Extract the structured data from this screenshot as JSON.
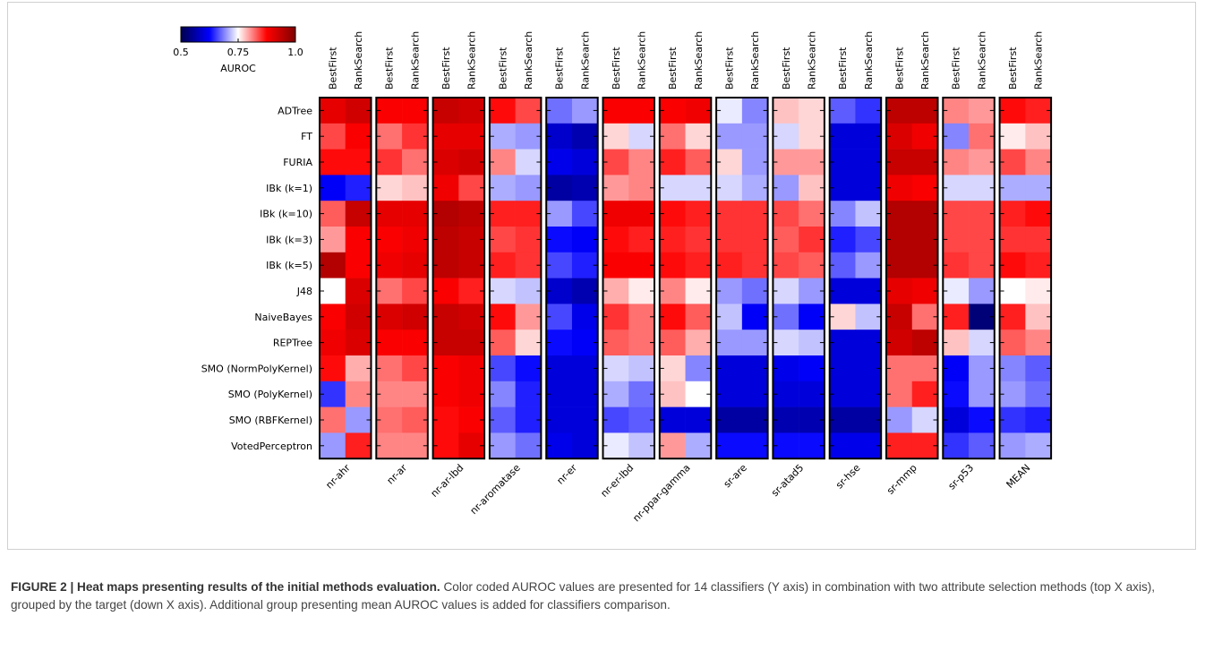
{
  "chart_data": {
    "type": "heatmap",
    "colorbar_label": "AUROC",
    "clim": [
      0.5,
      1
    ],
    "cticks": [
      0.5,
      0.75,
      {
        "value": 1,
        "label": "1.0"
      }
    ],
    "colormap": [
      "#00004c",
      "#0000ff",
      "#ffffff",
      "#ff0000",
      "#800000"
    ],
    "methods": [
      "BestFirst",
      "RankSearch"
    ],
    "rows": [
      "ADTree",
      "FT",
      "FURIA",
      "IBk (k=1)",
      "IBk (k=10)",
      "IBk (k=3)",
      "IBk (k=5)",
      "J48",
      "NaiveBayes",
      "REPTree",
      "SMO (NormPolyKernel)",
      "SMO (PolyKernel)",
      "SMO (RBFKernel)",
      "VotedPerceptron"
    ],
    "groups": [
      {
        "name": "nr-ahr",
        "values": [
          [
            0.9,
            0.92
          ],
          [
            0.84,
            0.88
          ],
          [
            0.87,
            0.87
          ],
          [
            0.62,
            0.64
          ],
          [
            0.83,
            0.93
          ],
          [
            0.8,
            0.88
          ],
          [
            0.95,
            0.88
          ],
          [
            0.75,
            0.91
          ],
          [
            0.88,
            0.92
          ],
          [
            0.89,
            0.91
          ],
          [
            0.87,
            0.79
          ],
          [
            0.65,
            0.81
          ],
          [
            0.82,
            0.7
          ],
          [
            0.7,
            0.86
          ]
        ]
      },
      {
        "name": "nr-ar",
        "values": [
          [
            0.88,
            0.88
          ],
          [
            0.82,
            0.85
          ],
          [
            0.85,
            0.82
          ],
          [
            0.77,
            0.78
          ],
          [
            0.9,
            0.9
          ],
          [
            0.88,
            0.89
          ],
          [
            0.89,
            0.9
          ],
          [
            0.82,
            0.84
          ],
          [
            0.91,
            0.92
          ],
          [
            0.88,
            0.88
          ],
          [
            0.82,
            0.84
          ],
          [
            0.81,
            0.81
          ],
          [
            0.82,
            0.83
          ],
          [
            0.81,
            0.81
          ]
        ]
      },
      {
        "name": "nr-ar-lbd",
        "values": [
          [
            0.93,
            0.92
          ],
          [
            0.9,
            0.9
          ],
          [
            0.91,
            0.92
          ],
          [
            0.89,
            0.84
          ],
          [
            0.95,
            0.94
          ],
          [
            0.94,
            0.93
          ],
          [
            0.94,
            0.93
          ],
          [
            0.88,
            0.86
          ],
          [
            0.93,
            0.92
          ],
          [
            0.93,
            0.93
          ],
          [
            0.88,
            0.89
          ],
          [
            0.88,
            0.89
          ],
          [
            0.87,
            0.88
          ],
          [
            0.87,
            0.9
          ]
        ]
      },
      {
        "name": "nr-aromatase",
        "values": [
          [
            0.87,
            0.84
          ],
          [
            0.71,
            0.7
          ],
          [
            0.81,
            0.73
          ],
          [
            0.71,
            0.7
          ],
          [
            0.86,
            0.86
          ],
          [
            0.84,
            0.85
          ],
          [
            0.86,
            0.85
          ],
          [
            0.73,
            0.72
          ],
          [
            0.87,
            0.8
          ],
          [
            0.83,
            0.77
          ],
          [
            0.66,
            0.63
          ],
          [
            0.69,
            0.64
          ],
          [
            0.67,
            0.64
          ],
          [
            0.7,
            0.68
          ]
        ]
      },
      {
        "name": "nr-er",
        "values": [
          [
            0.68,
            0.7
          ],
          [
            0.59,
            0.57
          ],
          [
            0.61,
            0.6
          ],
          [
            0.56,
            0.57
          ],
          [
            0.7,
            0.66
          ],
          [
            0.63,
            0.62
          ],
          [
            0.66,
            0.64
          ],
          [
            0.59,
            0.57
          ],
          [
            0.66,
            0.61
          ],
          [
            0.63,
            0.62
          ],
          [
            0.6,
            0.6
          ],
          [
            0.6,
            0.6
          ],
          [
            0.6,
            0.6
          ],
          [
            0.61,
            0.6
          ]
        ]
      },
      {
        "name": "nr-er-lbd",
        "values": [
          [
            0.88,
            0.88
          ],
          [
            0.77,
            0.73
          ],
          [
            0.84,
            0.81
          ],
          [
            0.8,
            0.81
          ],
          [
            0.89,
            0.89
          ],
          [
            0.87,
            0.86
          ],
          [
            0.88,
            0.88
          ],
          [
            0.79,
            0.76
          ],
          [
            0.85,
            0.82
          ],
          [
            0.83,
            0.82
          ],
          [
            0.73,
            0.72
          ],
          [
            0.71,
            0.68
          ],
          [
            0.66,
            0.67
          ],
          [
            0.74,
            0.72
          ]
        ]
      },
      {
        "name": "nr-ppar-gamma",
        "values": [
          [
            0.88,
            0.89
          ],
          [
            0.82,
            0.77
          ],
          [
            0.86,
            0.83
          ],
          [
            0.73,
            0.73
          ],
          [
            0.87,
            0.86
          ],
          [
            0.86,
            0.85
          ],
          [
            0.87,
            0.86
          ],
          [
            0.81,
            0.76
          ],
          [
            0.87,
            0.83
          ],
          [
            0.83,
            0.79
          ],
          [
            0.77,
            0.69
          ],
          [
            0.78,
            0.75
          ],
          [
            0.6,
            0.6
          ],
          [
            0.8,
            0.71
          ]
        ]
      },
      {
        "name": "sr-are",
        "values": [
          [
            0.74,
            0.69
          ],
          [
            0.7,
            0.7
          ],
          [
            0.77,
            0.7
          ],
          [
            0.73,
            0.71
          ],
          [
            0.85,
            0.85
          ],
          [
            0.85,
            0.85
          ],
          [
            0.86,
            0.85
          ],
          [
            0.7,
            0.68
          ],
          [
            0.72,
            0.62
          ],
          [
            0.7,
            0.7
          ],
          [
            0.6,
            0.6
          ],
          [
            0.6,
            0.6
          ],
          [
            0.56,
            0.56
          ],
          [
            0.63,
            0.63
          ]
        ]
      },
      {
        "name": "sr-atad5",
        "values": [
          [
            0.78,
            0.77
          ],
          [
            0.73,
            0.77
          ],
          [
            0.8,
            0.8
          ],
          [
            0.7,
            0.78
          ],
          [
            0.84,
            0.82
          ],
          [
            0.83,
            0.85
          ],
          [
            0.84,
            0.83
          ],
          [
            0.73,
            0.7
          ],
          [
            0.68,
            0.62
          ],
          [
            0.73,
            0.72
          ],
          [
            0.61,
            0.62
          ],
          [
            0.6,
            0.6
          ],
          [
            0.57,
            0.57
          ],
          [
            0.63,
            0.63
          ]
        ]
      },
      {
        "name": "sr-hse",
        "values": [
          [
            0.67,
            0.65
          ],
          [
            0.6,
            0.6
          ],
          [
            0.6,
            0.6
          ],
          [
            0.6,
            0.6
          ],
          [
            0.69,
            0.72
          ],
          [
            0.64,
            0.66
          ],
          [
            0.67,
            0.7
          ],
          [
            0.6,
            0.6
          ],
          [
            0.77,
            0.72
          ],
          [
            0.6,
            0.6
          ],
          [
            0.6,
            0.6
          ],
          [
            0.6,
            0.6
          ],
          [
            0.56,
            0.56
          ],
          [
            0.61,
            0.61
          ]
        ]
      },
      {
        "name": "sr-mmp",
        "values": [
          [
            0.94,
            0.94
          ],
          [
            0.91,
            0.89
          ],
          [
            0.93,
            0.93
          ],
          [
            0.89,
            0.88
          ],
          [
            0.95,
            0.95
          ],
          [
            0.95,
            0.95
          ],
          [
            0.95,
            0.95
          ],
          [
            0.9,
            0.89
          ],
          [
            0.93,
            0.82
          ],
          [
            0.92,
            0.94
          ],
          [
            0.82,
            0.82
          ],
          [
            0.82,
            0.86
          ],
          [
            0.7,
            0.73
          ],
          [
            0.86,
            0.86
          ]
        ]
      },
      {
        "name": "sr-p53",
        "values": [
          [
            0.81,
            0.8
          ],
          [
            0.69,
            0.82
          ],
          [
            0.81,
            0.8
          ],
          [
            0.73,
            0.73
          ],
          [
            0.84,
            0.84
          ],
          [
            0.84,
            0.84
          ],
          [
            0.85,
            0.84
          ],
          [
            0.74,
            0.7
          ],
          [
            0.86,
            0.53
          ],
          [
            0.78,
            0.73
          ],
          [
            0.62,
            0.7
          ],
          [
            0.63,
            0.7
          ],
          [
            0.6,
            0.63
          ],
          [
            0.65,
            0.67
          ]
        ]
      },
      {
        "name": "MEAN",
        "values": [
          [
            0.87,
            0.86
          ],
          [
            0.76,
            0.78
          ],
          [
            0.84,
            0.81
          ],
          [
            0.71,
            0.71
          ],
          [
            0.86,
            0.87
          ],
          [
            0.85,
            0.85
          ],
          [
            0.87,
            0.86
          ],
          [
            0.75,
            0.76
          ],
          [
            0.86,
            0.78
          ],
          [
            0.83,
            0.81
          ],
          [
            0.69,
            0.67
          ],
          [
            0.7,
            0.68
          ],
          [
            0.65,
            0.64
          ],
          [
            0.7,
            0.71
          ]
        ]
      }
    ],
    "caption_title": "FIGURE 2 | Heat maps presenting results of the initial methods evaluation.",
    "caption": "Color coded AUROC values are presented for 14 classifiers (Y axis) in combination with two attribute selection methods (top X axis), grouped by the target (down X axis). Additional group presenting mean AUROC values is added for classifiers comparison."
  }
}
